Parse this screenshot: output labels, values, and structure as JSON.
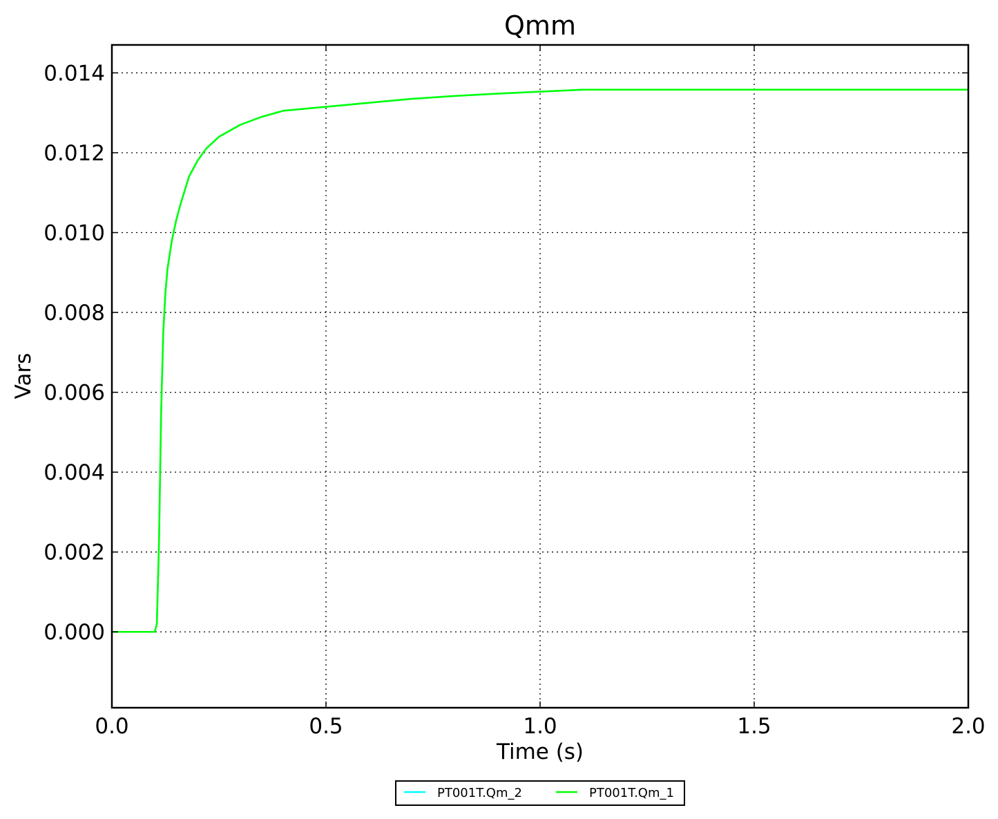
{
  "chart_data": {
    "type": "line",
    "title": "Qmm",
    "xlabel": "Time (s)",
    "ylabel": "Vars",
    "xlim": [
      0.0,
      2.0
    ],
    "ylim": [
      -0.0019,
      0.0147
    ],
    "xticks": [
      0.0,
      0.5,
      1.0,
      1.5,
      2.0
    ],
    "xtick_labels": [
      "0.0",
      "0.5",
      "1.0",
      "1.5",
      "2.0"
    ],
    "yticks": [
      0.0,
      0.002,
      0.004,
      0.006,
      0.008,
      0.01,
      0.012,
      0.014
    ],
    "ytick_labels": [
      "0.000",
      "0.002",
      "0.004",
      "0.006",
      "0.008",
      "0.010",
      "0.012",
      "0.014"
    ],
    "grid": true,
    "legend_position": "bottom-center",
    "series": [
      {
        "name": "PT001T.Qm_2",
        "color": "#00ffff",
        "x": [
          0.0,
          0.1,
          0.105,
          0.11,
          0.115,
          0.12,
          0.125,
          0.13,
          0.14,
          0.15,
          0.16,
          0.18,
          0.2,
          0.22,
          0.25,
          0.3,
          0.35,
          0.4,
          0.5,
          0.6,
          0.7,
          0.8,
          0.9,
          1.0,
          1.1,
          1.2,
          1.4,
          1.6,
          1.8,
          2.0
        ],
        "y": [
          0.0,
          0.0,
          0.0002,
          0.0022,
          0.0055,
          0.0075,
          0.0085,
          0.0091,
          0.0098,
          0.0103,
          0.0107,
          0.0114,
          0.0118,
          0.0121,
          0.0124,
          0.0127,
          0.0129,
          0.01305,
          0.01315,
          0.01325,
          0.01335,
          0.01342,
          0.01348,
          0.01353,
          0.01358,
          0.01358,
          0.01358,
          0.01358,
          0.01358,
          0.01358
        ]
      },
      {
        "name": "PT001T.Qm_1",
        "color": "#00ff00",
        "x": [
          0.0,
          0.1,
          0.105,
          0.11,
          0.115,
          0.12,
          0.125,
          0.13,
          0.14,
          0.15,
          0.16,
          0.18,
          0.2,
          0.22,
          0.25,
          0.3,
          0.35,
          0.4,
          0.5,
          0.6,
          0.7,
          0.8,
          0.9,
          1.0,
          1.1,
          1.2,
          1.4,
          1.6,
          1.8,
          2.0
        ],
        "y": [
          0.0,
          0.0,
          0.0002,
          0.0022,
          0.0055,
          0.0075,
          0.0085,
          0.0091,
          0.0098,
          0.0103,
          0.0107,
          0.0114,
          0.0118,
          0.0121,
          0.0124,
          0.0127,
          0.0129,
          0.01305,
          0.01315,
          0.01325,
          0.01335,
          0.01342,
          0.01348,
          0.01353,
          0.01358,
          0.01358,
          0.01358,
          0.01358,
          0.01358,
          0.01358
        ]
      }
    ]
  }
}
